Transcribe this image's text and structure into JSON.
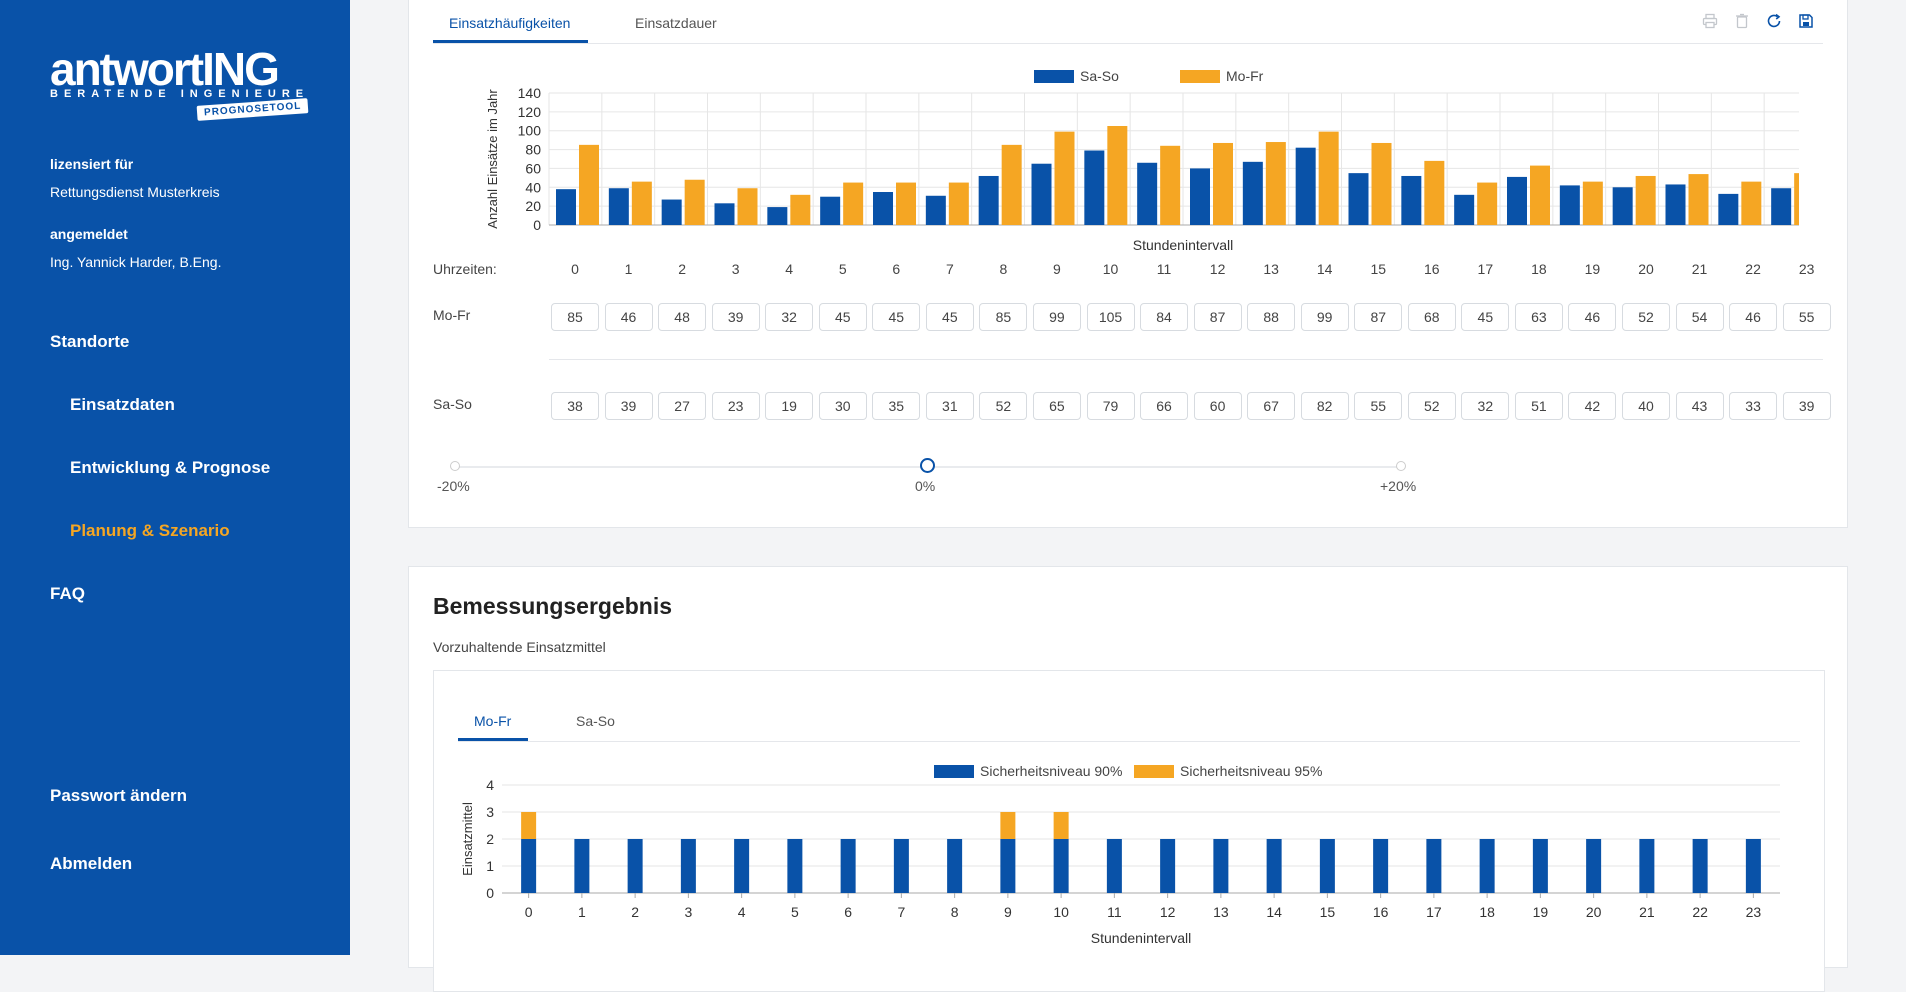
{
  "sidebar": {
    "logo_main": "antwortING",
    "logo_sub": "BERATENDE INGENIEURE",
    "logo_badge": "PROGNOSETOOL",
    "licensed_label": "lizensiert für",
    "licensed_value": "Rettungsdienst Musterkreis",
    "logged_label": "angemeldet",
    "logged_value": "Ing. Yannick Harder, B.Eng.",
    "nav": {
      "standorte": "Standorte",
      "einsatzdaten": "Einsatzdaten",
      "entwicklung": "Entwicklung & Prognose",
      "planung": "Planung & Szenario",
      "faq": "FAQ"
    },
    "password": "Passwort ändern",
    "logout": "Abmelden"
  },
  "colors": {
    "blue": "#0952a8",
    "orange": "#f5a623"
  },
  "panel1": {
    "tabs": [
      "Einsatzhäufigkeiten",
      "Einsatzdauer"
    ],
    "toolbar_icons": [
      "print-icon",
      "trash-icon",
      "refresh-icon",
      "save-icon"
    ],
    "row_labels": {
      "hours": "Uhrzeiten:",
      "mofr": "Mo-Fr",
      "saso": "Sa-So"
    },
    "hours": [
      "0",
      "1",
      "2",
      "3",
      "4",
      "5",
      "6",
      "7",
      "8",
      "9",
      "10",
      "11",
      "12",
      "13",
      "14",
      "15",
      "16",
      "17",
      "18",
      "19",
      "20",
      "21",
      "22",
      "23"
    ],
    "mofr_values": [
      85,
      46,
      48,
      39,
      32,
      45,
      45,
      45,
      85,
      99,
      105,
      84,
      87,
      88,
      99,
      87,
      68,
      45,
      63,
      46,
      52,
      54,
      46,
      55
    ],
    "saso_values": [
      38,
      39,
      27,
      23,
      19,
      30,
      35,
      31,
      52,
      65,
      79,
      66,
      60,
      67,
      82,
      55,
      52,
      32,
      51,
      42,
      40,
      43,
      33,
      39
    ],
    "slider": {
      "min_label": "-20%",
      "mid_label": "0%",
      "max_label": "+20%",
      "value": 0.5
    }
  },
  "panel2": {
    "title": "Bemessungsergebnis",
    "subtitle": "Vorzuhaltende Einsatzmittel",
    "tabs": [
      "Mo-Fr",
      "Sa-So"
    ]
  },
  "chart_data": [
    {
      "type": "bar",
      "title": "",
      "xlabel": "Stundenintervall",
      "ylabel": "Anzahl Einsätze im Jahr",
      "ylim": [
        0,
        140
      ],
      "yticks": [
        "0",
        "20",
        "40",
        "60",
        "80",
        "100",
        "120",
        "140"
      ],
      "legend": "top-center",
      "grid": true,
      "categories": [
        "0",
        "1",
        "2",
        "3",
        "4",
        "5",
        "6",
        "7",
        "8",
        "9",
        "10",
        "11",
        "12",
        "13",
        "14",
        "15",
        "16",
        "17",
        "18",
        "19",
        "20",
        "21",
        "22",
        "23"
      ],
      "series": [
        {
          "name": "Sa-So",
          "color": "#0952a8",
          "values": [
            38,
            39,
            27,
            23,
            19,
            30,
            35,
            31,
            52,
            65,
            79,
            66,
            60,
            67,
            82,
            55,
            52,
            32,
            51,
            42,
            40,
            43,
            33,
            39
          ]
        },
        {
          "name": "Mo-Fr",
          "color": "#f5a623",
          "values": [
            85,
            46,
            48,
            39,
            32,
            45,
            45,
            45,
            85,
            99,
            105,
            84,
            87,
            88,
            99,
            87,
            68,
            45,
            63,
            46,
            52,
            54,
            46,
            55
          ]
        }
      ]
    },
    {
      "type": "bar",
      "stacked": true,
      "title": "",
      "xlabel": "Stundenintervall",
      "ylabel": "Einsatzmittel",
      "ylim": [
        0,
        4
      ],
      "yticks": [
        "0",
        "1",
        "2",
        "3",
        "4"
      ],
      "legend": "top-center",
      "grid": true,
      "categories": [
        "0",
        "1",
        "2",
        "3",
        "4",
        "5",
        "6",
        "7",
        "8",
        "9",
        "10",
        "11",
        "12",
        "13",
        "14",
        "15",
        "16",
        "17",
        "18",
        "19",
        "20",
        "21",
        "22",
        "23"
      ],
      "series": [
        {
          "name": "Sicherheitsniveau 90%",
          "color": "#0952a8",
          "values": [
            2,
            2,
            2,
            2,
            2,
            2,
            2,
            2,
            2,
            2,
            2,
            2,
            2,
            2,
            2,
            2,
            2,
            2,
            2,
            2,
            2,
            2,
            2,
            2
          ]
        },
        {
          "name": "Sicherheitsniveau 95%",
          "color": "#f5a623",
          "values": [
            1,
            0,
            0,
            0,
            0,
            0,
            0,
            0,
            0,
            1,
            1,
            0,
            0,
            0,
            0,
            0,
            0,
            0,
            0,
            0,
            0,
            0,
            0,
            0
          ]
        }
      ]
    }
  ]
}
